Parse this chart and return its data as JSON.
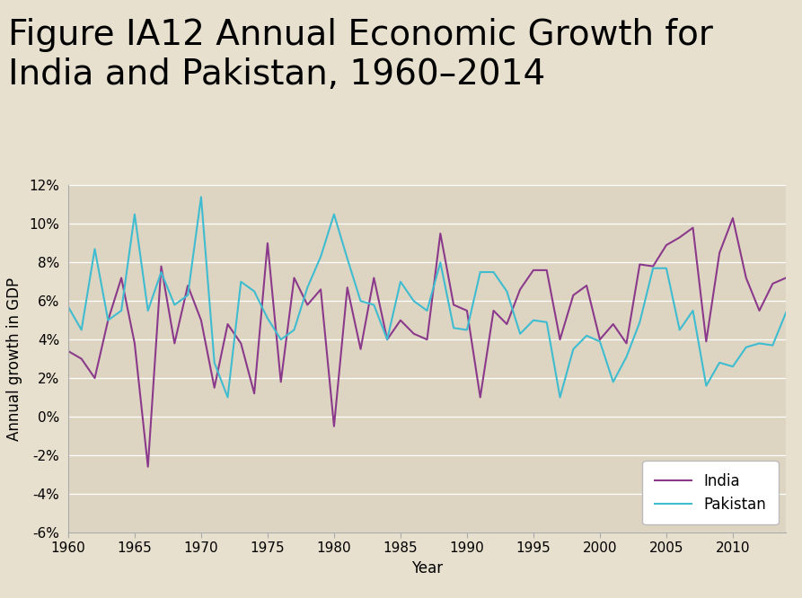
{
  "title_line1": "Figure IA12 Annual Economic Growth for",
  "title_line2": "India and Pakistan, 1960–2014",
  "xlabel": "Year",
  "ylabel": "Annual growth in GDP",
  "background_color": "#e8e0cf",
  "plot_bg_color": "#ddd5c2",
  "india_color": "#8b3a8b",
  "pakistan_color": "#40bcd0",
  "ylim": [
    -6,
    12
  ],
  "yticks": [
    -6,
    -4,
    -2,
    0,
    2,
    4,
    6,
    8,
    10,
    12
  ],
  "ytick_labels": [
    "-6%",
    "-4%",
    "-2%",
    "0%",
    "2%",
    "4%",
    "6%",
    "8%",
    "10%",
    "12%"
  ],
  "xlim": [
    1960,
    2014
  ],
  "xticks": [
    1960,
    1965,
    1970,
    1975,
    1980,
    1985,
    1990,
    1995,
    2000,
    2005,
    2010
  ],
  "years": [
    1960,
    1961,
    1962,
    1963,
    1964,
    1965,
    1966,
    1967,
    1968,
    1969,
    1970,
    1971,
    1972,
    1973,
    1974,
    1975,
    1976,
    1977,
    1978,
    1979,
    1980,
    1981,
    1982,
    1983,
    1984,
    1985,
    1986,
    1987,
    1988,
    1989,
    1990,
    1991,
    1992,
    1993,
    1994,
    1995,
    1996,
    1997,
    1998,
    1999,
    2000,
    2001,
    2002,
    2003,
    2004,
    2005,
    2006,
    2007,
    2008,
    2009,
    2010,
    2011,
    2012,
    2013,
    2014
  ],
  "india": [
    3.4,
    3.0,
    2.0,
    5.0,
    7.2,
    3.8,
    -2.6,
    7.8,
    3.8,
    6.8,
    5.0,
    1.5,
    4.8,
    3.8,
    1.2,
    9.0,
    1.8,
    7.2,
    5.8,
    6.6,
    -0.5,
    6.7,
    3.5,
    7.2,
    4.0,
    5.0,
    4.3,
    4.0,
    9.5,
    5.8,
    5.5,
    1.0,
    5.5,
    4.8,
    6.6,
    7.6,
    7.6,
    4.0,
    6.3,
    6.8,
    4.0,
    4.8,
    3.8,
    7.9,
    7.8,
    8.9,
    9.3,
    9.8,
    3.9,
    8.5,
    10.3,
    7.2,
    5.5,
    6.9,
    7.2
  ],
  "pakistan": [
    5.7,
    4.5,
    8.7,
    5.0,
    5.5,
    10.5,
    5.5,
    7.5,
    5.8,
    6.3,
    11.4,
    2.8,
    1.0,
    7.0,
    6.5,
    5.1,
    4.0,
    4.5,
    6.7,
    8.3,
    10.5,
    8.2,
    6.0,
    5.8,
    4.0,
    7.0,
    6.0,
    5.5,
    8.0,
    4.6,
    4.5,
    7.5,
    7.5,
    6.5,
    4.3,
    5.0,
    4.9,
    1.0,
    3.5,
    4.2,
    3.9,
    1.8,
    3.1,
    4.9,
    7.7,
    7.7,
    4.5,
    5.5,
    1.6,
    2.8,
    2.6,
    3.6,
    3.8,
    3.7,
    5.4
  ],
  "title_fontsize": 28,
  "axis_fontsize": 12,
  "tick_fontsize": 11,
  "line_width": 1.5
}
